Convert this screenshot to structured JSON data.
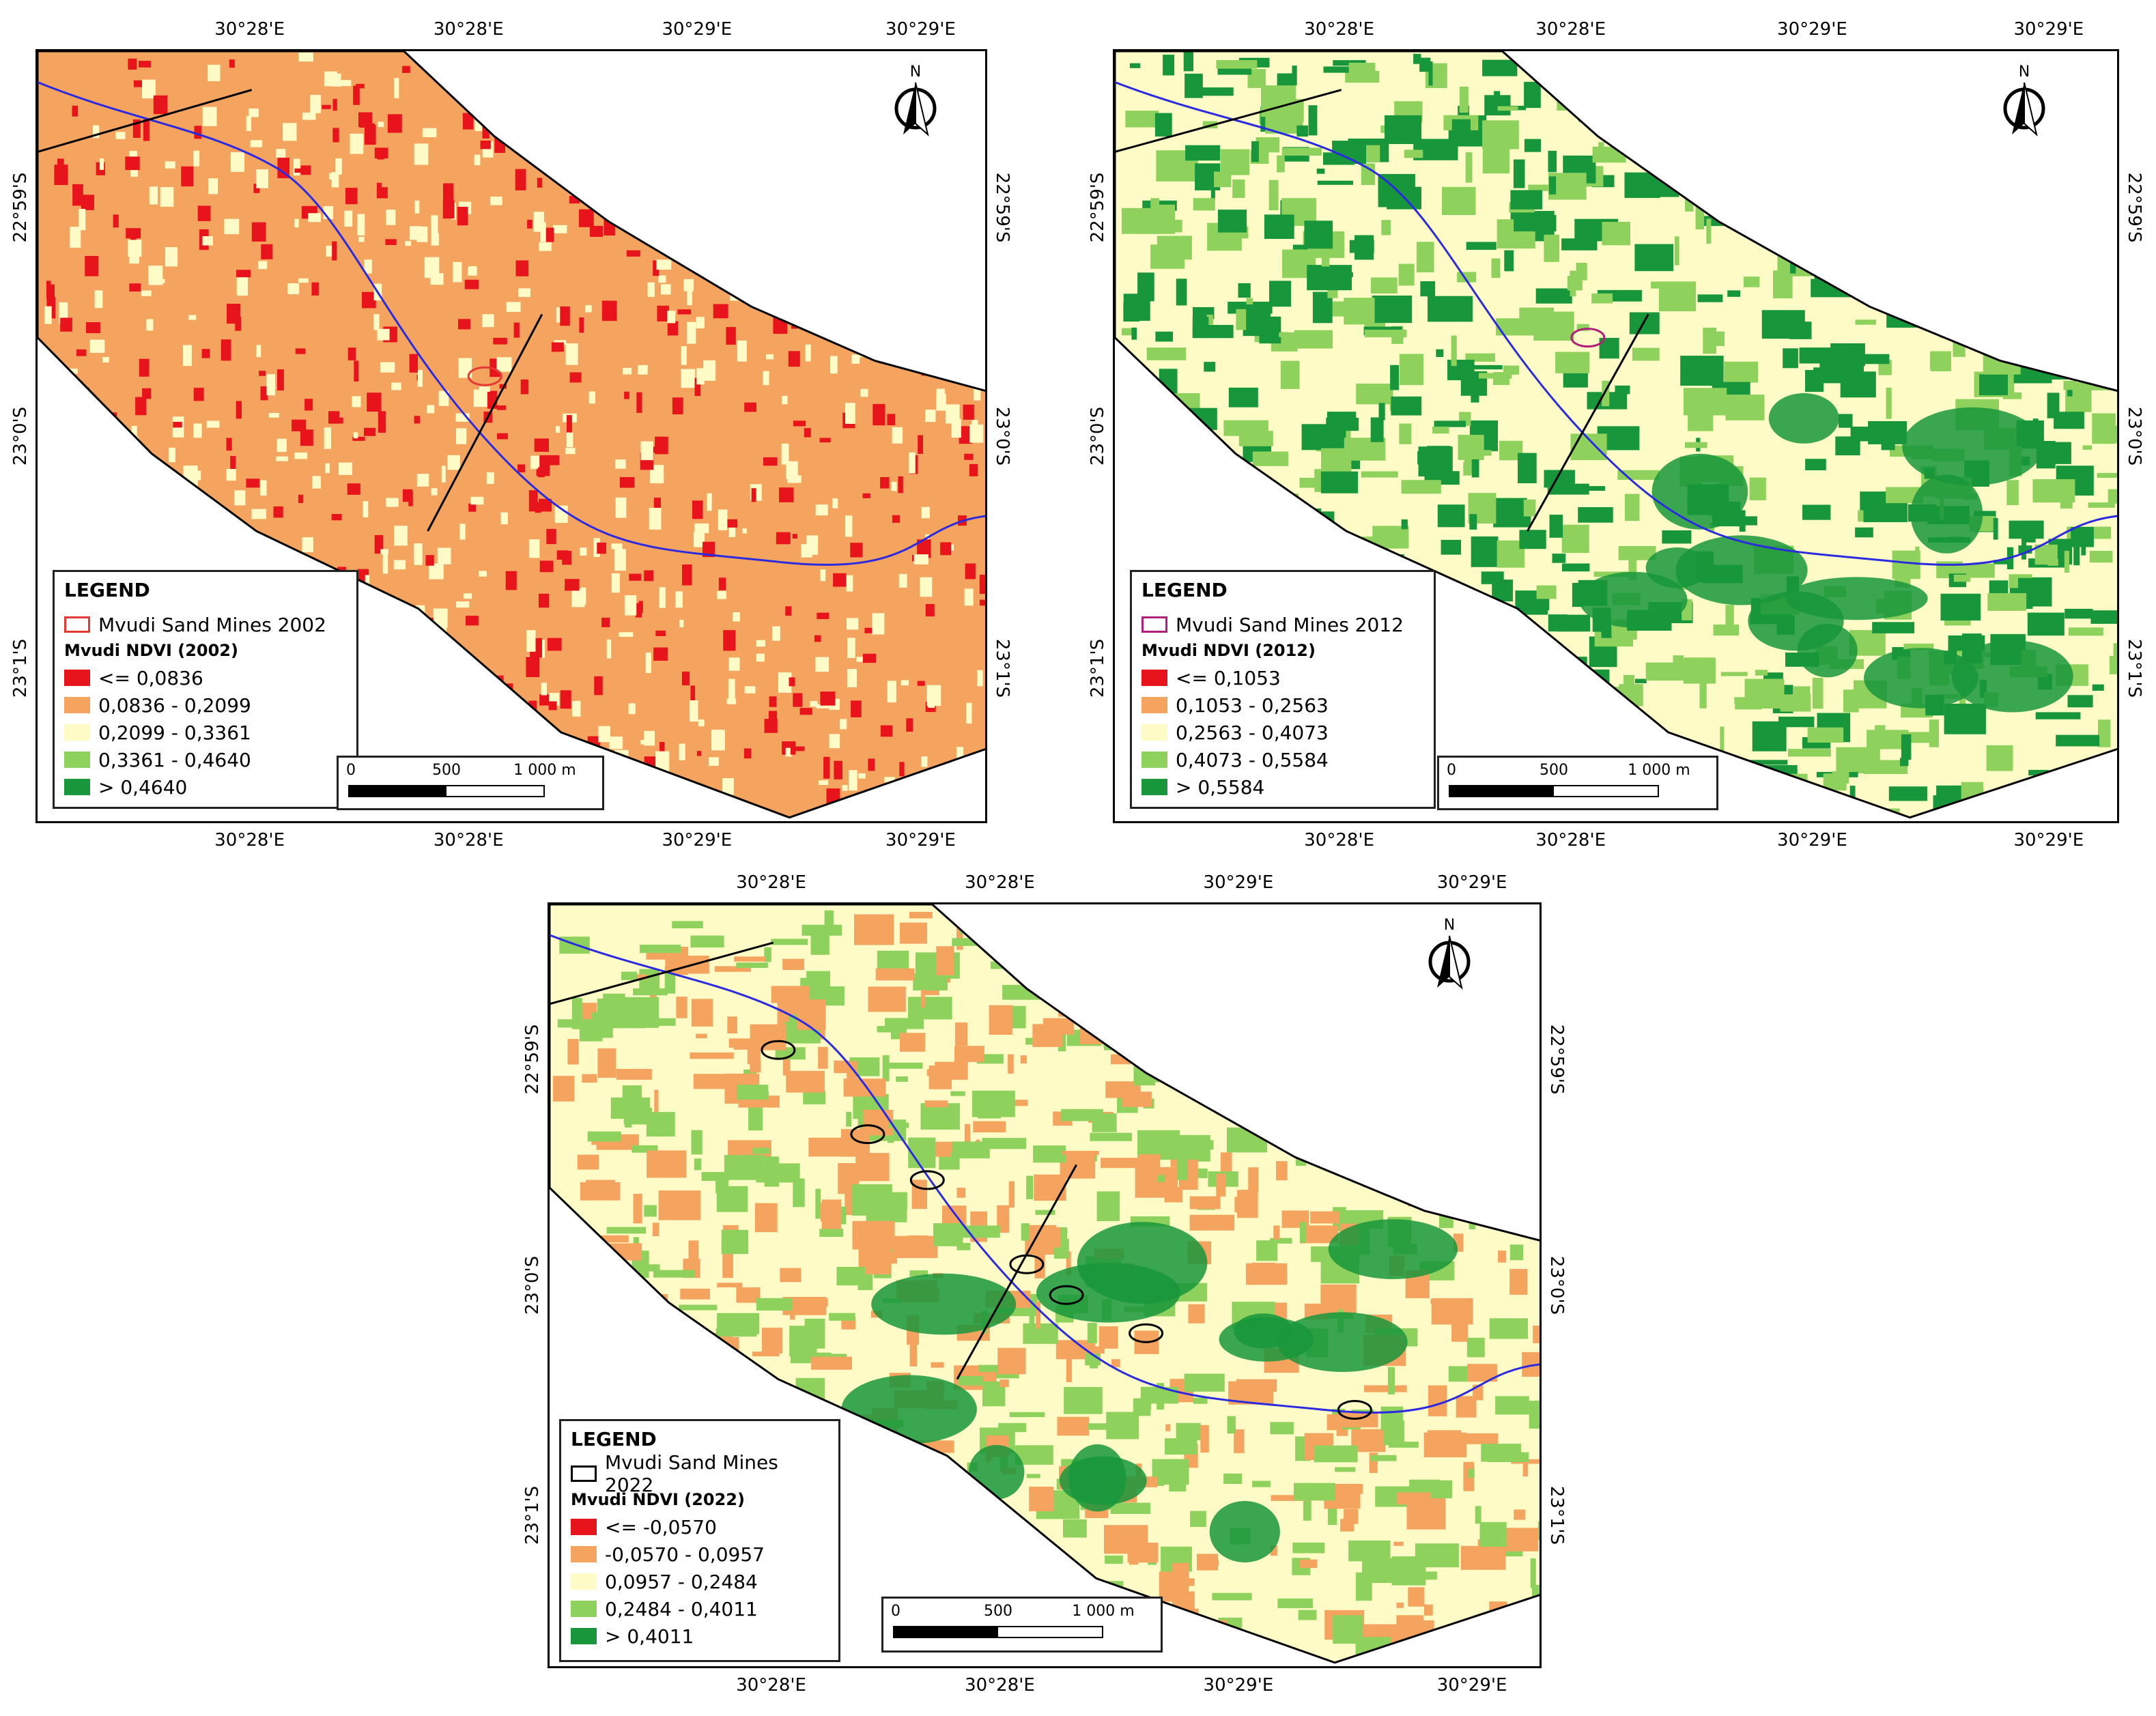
{
  "panels": [
    {
      "id": "2002",
      "lon_labels": [
        "30°28'E",
        "30°28'E",
        "30°29'E",
        "30°29'E"
      ],
      "lat_labels": [
        "22°59'S",
        "23°0'S",
        "23°1'S"
      ],
      "north_label": "N",
      "legend": {
        "title": "LEGEND",
        "mines_label": "Mvudi Sand Mines 2002",
        "mines_outline_color": "#e53935",
        "ndvi_title": "Mvudi NDVI (2002)",
        "classes": [
          {
            "label": "<= 0,0836",
            "color": "#e8141b"
          },
          {
            "label": "0,0836 - 0,2099",
            "color": "#f5a460"
          },
          {
            "label": "0,2099 - 0,3361",
            "color": "#fffbc6"
          },
          {
            "label": "0,3361 - 0,4640",
            "color": "#8ed15c"
          },
          {
            "label": "> 0,4640",
            "color": "#17963b"
          }
        ]
      },
      "scale": {
        "labels": [
          "0",
          "500",
          "1 000 m"
        ]
      },
      "base_color": "#f5a460",
      "speckle_color": "#e8141b",
      "speckle_color_2": "#fffbc6"
    },
    {
      "id": "2012",
      "lon_labels": [
        "30°28'E",
        "30°28'E",
        "30°29'E",
        "30°29'E"
      ],
      "lat_labels": [
        "22°59'S",
        "23°0'S",
        "23°1'S"
      ],
      "north_label": "N",
      "legend": {
        "title": "LEGEND",
        "mines_label": "Mvudi Sand Mines 2012",
        "mines_outline_color": "#b0207a",
        "ndvi_title": "Mvudi NDVI (2012)",
        "classes": [
          {
            "label": "<= 0,1053",
            "color": "#e8141b"
          },
          {
            "label": "0,1053 - 0,2563",
            "color": "#f5a460"
          },
          {
            "label": "0,2563 - 0,4073",
            "color": "#fffbc6"
          },
          {
            "label": "0,4073 - 0,5584",
            "color": "#8ed15c"
          },
          {
            "label": "> 0,5584",
            "color": "#17963b"
          }
        ]
      },
      "scale": {
        "labels": [
          "0",
          "500",
          "1 000 m"
        ]
      },
      "base_color": "#fffbc6",
      "speckle_color": "#8ed15c",
      "speckle_color_2": "#17963b"
    },
    {
      "id": "2022",
      "lon_labels": [
        "30°28'E",
        "30°28'E",
        "30°29'E",
        "30°29'E"
      ],
      "lat_labels": [
        "22°59'S",
        "23°0'S",
        "23°1'S"
      ],
      "north_label": "N",
      "legend": {
        "title": "LEGEND",
        "mines_label": "Mvudi Sand Mines 2022",
        "mines_outline_color": "#000000",
        "ndvi_title": "Mvudi NDVI (2022)",
        "classes": [
          {
            "label": "<= -0,0570",
            "color": "#e8141b"
          },
          {
            "label": "-0,0570 - 0,0957",
            "color": "#f5a460"
          },
          {
            "label": "0,0957 - 0,2484",
            "color": "#fffbc6"
          },
          {
            "label": "0,2484 - 0,4011",
            "color": "#8ed15c"
          },
          {
            "label": "> 0,4011",
            "color": "#17963b"
          }
        ]
      },
      "scale": {
        "labels": [
          "0",
          "500",
          "1 000 m"
        ]
      },
      "base_color": "#fffbc6",
      "speckle_color": "#8ed15c",
      "speckle_color_2": "#f5a460"
    }
  ],
  "river_color": "#2a2ae0"
}
